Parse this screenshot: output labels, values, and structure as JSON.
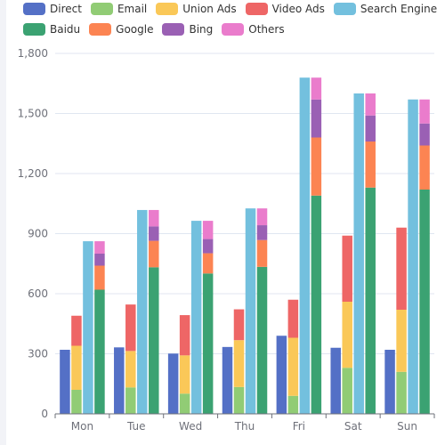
{
  "colors": {
    "Direct": "#5470c6",
    "Email": "#91cc75",
    "Union Ads": "#fac858",
    "Video Ads": "#ee6666",
    "Search Engine": "#73c0de",
    "Baidu": "#3ba272",
    "Google": "#fc8452",
    "Bing": "#9a60b4",
    "Others": "#ea7ccc"
  },
  "legend": {
    "row1": [
      "Direct",
      "Email",
      "Union Ads",
      "Video Ads",
      "Search Engine"
    ],
    "row2": [
      "Baidu",
      "Google",
      "Bing",
      "Others"
    ]
  },
  "chart_data": {
    "type": "bar",
    "categories": [
      "Mon",
      "Tue",
      "Wed",
      "Thu",
      "Fri",
      "Sat",
      "Sun"
    ],
    "ylim": [
      0,
      1800
    ],
    "yticks": [
      0,
      300,
      600,
      900,
      1200,
      1500,
      1800
    ],
    "ytick_labels": [
      "0",
      "300",
      "600",
      "900",
      "1,200",
      "1,500",
      "1,800"
    ],
    "grid": true,
    "legend_position": "top",
    "series": [
      {
        "name": "Direct",
        "stack": null,
        "values": [
          320,
          332,
          301,
          334,
          390,
          330,
          320
        ]
      },
      {
        "name": "Email",
        "stack": "Ad",
        "values": [
          120,
          132,
          101,
          134,
          90,
          230,
          210
        ]
      },
      {
        "name": "Union Ads",
        "stack": "Ad",
        "values": [
          220,
          182,
          191,
          234,
          290,
          330,
          310
        ]
      },
      {
        "name": "Video Ads",
        "stack": "Ad",
        "values": [
          150,
          232,
          201,
          154,
          190,
          330,
          410
        ]
      },
      {
        "name": "Search Engine",
        "stack": null,
        "values": [
          862,
          1018,
          964,
          1026,
          1679,
          1600,
          1570
        ]
      },
      {
        "name": "Baidu",
        "stack": "Search Engine",
        "values": [
          620,
          732,
          701,
          734,
          1090,
          1130,
          1120
        ]
      },
      {
        "name": "Google",
        "stack": "Search Engine",
        "values": [
          120,
          132,
          101,
          134,
          290,
          230,
          220
        ]
      },
      {
        "name": "Bing",
        "stack": "Search Engine",
        "values": [
          60,
          72,
          71,
          74,
          190,
          130,
          110
        ]
      },
      {
        "name": "Others",
        "stack": "Search Engine",
        "values": [
          62,
          82,
          91,
          84,
          109,
          110,
          120
        ]
      }
    ]
  }
}
